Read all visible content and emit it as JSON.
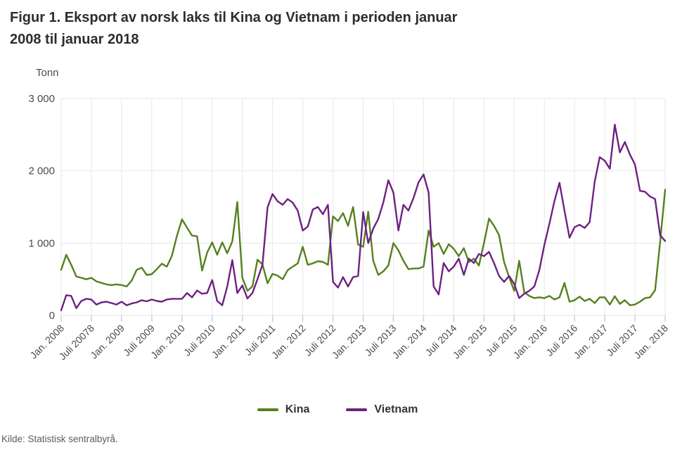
{
  "figure": {
    "title_line1": "Figur 1. Eksport av norsk laks til Kina og Vietnam i perioden januar",
    "title_line2": "2008 til januar 2018",
    "unit_label": "Tonn",
    "source": "Kilde: Statistisk sentralbyrå."
  },
  "chart_data": {
    "type": "line",
    "title": "Figur 1. Eksport av norsk laks til Kina og Vietnam i perioden januar 2008 til januar 2018",
    "xlabel": "",
    "ylabel": "Tonn",
    "ylim": [
      0,
      3000
    ],
    "grid": true,
    "legend_position": "bottom",
    "grid_color": "#e7e7e7",
    "tick_color": "#c8d4dc",
    "axis_text_color": "#4b4b4b",
    "y_ticks": [
      0,
      1000,
      2000,
      3000
    ],
    "y_tick_labels": [
      "0",
      "1 000",
      "2 000",
      "3 000"
    ],
    "x_tick_labels": [
      "Jan. 2008",
      "Juli 20078",
      "Jan. 2009",
      "Juli 2009",
      "Jan. 2010",
      "Juli 2010",
      "Jan. 2011",
      "Juli 2011",
      "Jan. 2012",
      "Juli 2012",
      "Jan. 2013",
      "Juli 2013",
      "Jan. 2014",
      "Juli 2014",
      "Jan. 2015",
      "Juli 2015",
      "Jan. 2016",
      "Juli 2016",
      "Jan. 2017",
      "Juli 2017",
      "Jan. 2018"
    ],
    "x_unit": "month (monthly values Jan 2008 - Jan 2018)",
    "series": [
      {
        "name": "Kina",
        "color": "#55801e",
        "values": [
          630,
          840,
          700,
          540,
          520,
          500,
          520,
          470,
          450,
          430,
          420,
          430,
          420,
          400,
          480,
          630,
          660,
          560,
          570,
          640,
          715,
          675,
          825,
          1100,
          1330,
          1215,
          1105,
          1095,
          620,
          870,
          1010,
          840,
          1010,
          860,
          1025,
          1570,
          520,
          340,
          400,
          770,
          705,
          445,
          575,
          550,
          500,
          625,
          675,
          720,
          950,
          700,
          720,
          750,
          740,
          700,
          1370,
          1305,
          1415,
          1240,
          1500,
          980,
          950,
          1435,
          755,
          560,
          610,
          690,
          1000,
          900,
          755,
          640,
          650,
          650,
          675,
          1175,
          950,
          1000,
          850,
          985,
          920,
          820,
          930,
          740,
          785,
          690,
          1000,
          1340,
          1240,
          1110,
          740,
          530,
          340,
          755,
          320,
          270,
          240,
          250,
          240,
          270,
          220,
          250,
          450,
          190,
          210,
          260,
          200,
          230,
          170,
          250,
          250,
          150,
          265,
          160,
          210,
          140,
          150,
          190,
          240,
          250,
          350,
          1010,
          1740
        ]
      },
      {
        "name": "Vietnam",
        "color": "#6e2182",
        "values": [
          70,
          280,
          270,
          100,
          200,
          230,
          220,
          150,
          180,
          190,
          170,
          150,
          190,
          140,
          165,
          180,
          210,
          195,
          220,
          200,
          190,
          220,
          230,
          230,
          230,
          310,
          250,
          345,
          300,
          310,
          490,
          200,
          140,
          400,
          765,
          310,
          415,
          235,
          310,
          500,
          700,
          1495,
          1680,
          1580,
          1530,
          1610,
          1560,
          1450,
          1175,
          1230,
          1465,
          1500,
          1400,
          1530,
          465,
          385,
          530,
          400,
          530,
          545,
          1430,
          1000,
          1200,
          1335,
          1560,
          1870,
          1700,
          1175,
          1530,
          1450,
          1625,
          1840,
          1950,
          1700,
          400,
          290,
          725,
          610,
          675,
          785,
          560,
          785,
          725,
          850,
          820,
          880,
          725,
          545,
          465,
          545,
          435,
          240,
          300,
          340,
          400,
          625,
          975,
          1270,
          1580,
          1835,
          1450,
          1075,
          1220,
          1255,
          1210,
          1290,
          1850,
          2190,
          2140,
          2030,
          2640,
          2255,
          2400,
          2225,
          2090,
          1725,
          1710,
          1645,
          1610,
          1110,
          1030
        ]
      }
    ]
  }
}
